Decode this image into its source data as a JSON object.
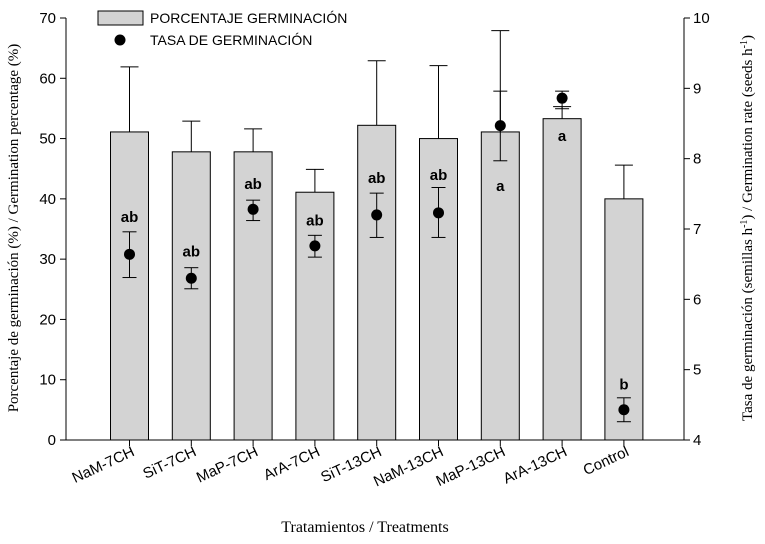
{
  "chart_data": {
    "type": "bar",
    "xlabel": "Tratamientos / Treatments",
    "ylabel": "Porcentaje de germinación (%) / Germination percentage (%)",
    "y2label_main": "Tasa de germinación (semillas h",
    "y2label_sup1": "-1",
    "y2label_mid": ") / Germination rate (seeds h",
    "y2label_sup2": "-1",
    "y2label_end": ")",
    "categories": [
      "NaM-7CH",
      "SiT-7CH",
      "MaP-7CH",
      "ArA-7CH",
      "SiT-13CH",
      "NaM-13CH",
      "MaP-13CH",
      "ArA-13CH",
      "Control"
    ],
    "ylim": [
      0,
      70
    ],
    "yticks": [
      0,
      10,
      20,
      30,
      40,
      50,
      60,
      70
    ],
    "y2lim": [
      4,
      10
    ],
    "y2ticks": [
      4,
      5,
      6,
      7,
      8,
      9,
      10
    ],
    "legend": {
      "placement": "top-left",
      "bar_label": "PORCENTAJE GERMINACIÓN",
      "point_label": "TASA DE GERMINACIÓN"
    },
    "series": [
      {
        "name": "PORCENTAJE GERMINACIÓN",
        "kind": "bar",
        "axis": "left",
        "color": "#d3d3d3",
        "values": [
          51.1,
          47.8,
          47.8,
          41.1,
          52.2,
          50.0,
          51.1,
          53.3,
          40.0
        ],
        "error_upper": [
          61.9,
          52.9,
          51.6,
          44.9,
          62.9,
          62.1,
          67.9,
          55.3,
          45.6
        ]
      },
      {
        "name": "TASA DE GERMINACIÓN",
        "kind": "point",
        "axis": "right",
        "color": "#000000",
        "values": [
          6.64,
          6.3,
          7.28,
          6.76,
          7.2,
          7.23,
          8.47,
          8.86,
          4.43
        ],
        "error_low": [
          6.31,
          6.15,
          7.12,
          6.6,
          6.88,
          6.88,
          7.97,
          8.71,
          4.26
        ],
        "error_high": [
          6.96,
          6.45,
          7.41,
          6.91,
          7.51,
          7.59,
          8.96,
          8.96,
          4.6
        ]
      }
    ],
    "annotations": [
      {
        "category": "NaM-7CH",
        "text": "ab",
        "y_left": 36.2
      },
      {
        "category": "SiT-7CH",
        "text": "ab",
        "y_left": 30.4
      },
      {
        "category": "MaP-7CH",
        "text": "ab",
        "y_left": 41.6
      },
      {
        "category": "ArA-7CH",
        "text": "ab",
        "y_left": 35.6
      },
      {
        "category": "SiT-13CH",
        "text": "ab",
        "y_left": 42.6
      },
      {
        "category": "NaM-13CH",
        "text": "ab",
        "y_left": 43.1
      },
      {
        "category": "MaP-13CH",
        "text": "a",
        "y_left": 41.3
      },
      {
        "category": "ArA-13CH",
        "text": "a",
        "y_left": 49.6
      },
      {
        "category": "Control",
        "text": "b",
        "y_left": 8.4
      }
    ]
  }
}
